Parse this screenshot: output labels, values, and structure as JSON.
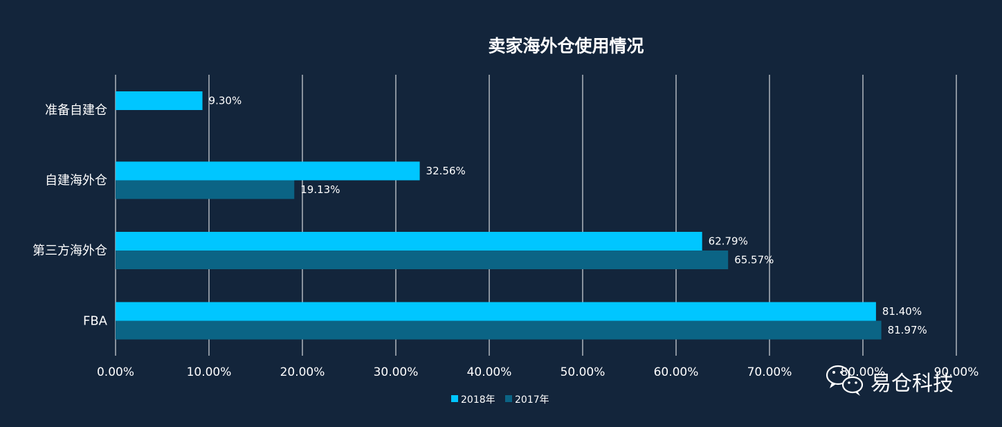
{
  "chart_data": {
    "type": "bar",
    "orientation": "horizontal",
    "title": "卖家海外仓使用情况",
    "categories": [
      "准备自建仓",
      "自建海外仓",
      "第三方海外仓",
      "FBA"
    ],
    "series": [
      {
        "name": "2018年",
        "color": "#00c6ff",
        "values": [
          9.3,
          32.56,
          62.79,
          81.4
        ],
        "labels": [
          "9.30%",
          "32.56%",
          "62.79%",
          "81.40%"
        ]
      },
      {
        "name": "2017年",
        "color": "#0b6485",
        "values": [
          null,
          19.13,
          65.57,
          81.97
        ],
        "labels": [
          "",
          "19.13%",
          "65.57%",
          "81.97%"
        ]
      }
    ],
    "xlim": [
      0,
      90
    ],
    "xticks": [
      "0.00%",
      "10.00%",
      "20.00%",
      "30.00%",
      "40.00%",
      "50.00%",
      "60.00%",
      "70.00%",
      "80.00%",
      "90.00%"
    ],
    "grid": true,
    "legend_position": "bottom"
  },
  "watermark": {
    "text": "易仓科技",
    "icon": "wechat-icon"
  }
}
